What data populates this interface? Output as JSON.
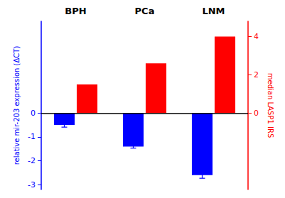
{
  "chart_data": {
    "type": "bar",
    "categories": [
      "BPH",
      "PCa",
      "LNM"
    ],
    "ylabel": "relative mir-203 expression (ΔCT)",
    "y2label": "median LASP1 IRS",
    "ylim": [
      -3.2,
      3.84
    ],
    "yticks": [
      0,
      -1,
      -2,
      -3
    ],
    "y2lim": [
      -4,
      4.8
    ],
    "y2ticks": [
      0,
      2,
      4
    ],
    "grid": false,
    "series": [
      {
        "color": "#0000FF",
        "values": [
          -0.5,
          -1.4,
          -2.6
        ],
        "errors": [
          0.09,
          0.07,
          0.13
        ]
      },
      {
        "color": "#FF0000",
        "values": [
          1.5,
          2.6,
          4.0
        ],
        "axis": "y2"
      }
    ]
  }
}
